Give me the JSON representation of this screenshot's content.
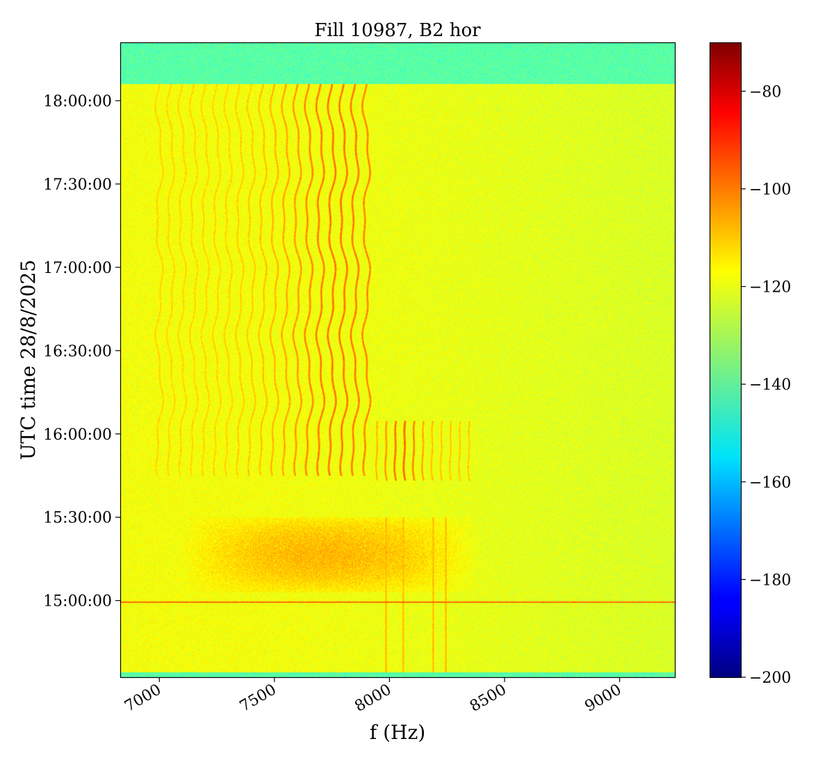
{
  "chart_data": {
    "type": "heatmap",
    "title": "Fill 10987, B2 hor",
    "xlabel": "f (Hz)",
    "ylabel": "UTC time 28/8/2025",
    "xlim": [
      6830,
      9240
    ],
    "x_ticks": [
      7000,
      7500,
      8000,
      8500,
      9000
    ],
    "x_tick_labels": [
      "7000",
      "7500",
      "8000",
      "8500",
      "9000"
    ],
    "y_ticks": [
      15,
      15.5,
      16,
      16.5,
      17,
      17.5,
      18
    ],
    "y_tick_labels": [
      "15:00:00",
      "15:30:00",
      "16:00:00",
      "16:30:00",
      "17:00:00",
      "17:30:00",
      "18:00:00"
    ],
    "ylim_hours": [
      14.54,
      18.35
    ],
    "colorbar": {
      "range": [
        -200,
        -70
      ],
      "ticks": [
        -200,
        -180,
        -160,
        -140,
        -120,
        -100,
        -80
      ],
      "tick_labels": [
        "−200",
        "−180",
        "−160",
        "−140",
        "−120",
        "−100",
        "−80"
      ],
      "colormap": "jet"
    },
    "background_level_db": -122,
    "gap_level_db": -140,
    "data_start_hour": 14.57,
    "data_end_hour": 18.1,
    "regions": [
      {
        "name": "early spectral lines",
        "t_start": 14.57,
        "t_end": 15.5,
        "freqs_hz": [
          7985,
          8060,
          8190,
          8245
        ],
        "level_db": -108
      },
      {
        "name": "broadband noise",
        "t_start": 15.05,
        "t_end": 15.5,
        "freq_range_hz": [
          7100,
          8400
        ],
        "level_db": -110
      },
      {
        "name": "comb A",
        "t_start": 15.75,
        "t_end": 18.1,
        "freqs_hz": [
          7000,
          7050,
          7100,
          7150,
          7200,
          7250,
          7300,
          7350,
          7400,
          7450,
          7500,
          7550,
          7600,
          7650,
          7700,
          7750,
          7800,
          7850,
          7900
        ],
        "level_db": -100
      },
      {
        "name": "comb B",
        "t_start": 15.72,
        "t_end": 16.08,
        "freqs_hz": [
          7950,
          7990,
          8030,
          8070,
          8110,
          8150,
          8190,
          8230,
          8270,
          8310,
          8350
        ],
        "level_db": -98
      },
      {
        "name": "horizontal line",
        "t": 14.99,
        "level_db": -100
      }
    ]
  }
}
